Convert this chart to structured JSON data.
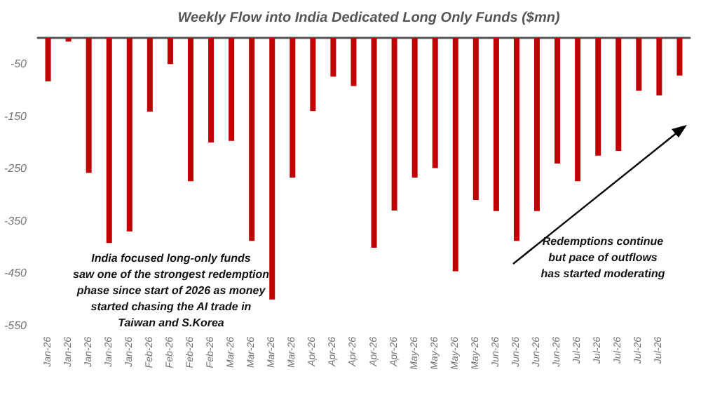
{
  "chart_data": {
    "type": "bar",
    "title": "Weekly Flow into India Dedicated Long Only Funds ($mn)",
    "categories": [
      "Jan-26",
      "Jan-26",
      "Jan-26",
      "Jan-26",
      "Jan-26",
      "Feb-26",
      "Feb-26",
      "Feb-26",
      "Feb-26",
      "Mar-26",
      "Mar-26",
      "Mar-26",
      "Mar-26",
      "Apr-26",
      "Apr-26",
      "Apr-26",
      "Apr-26",
      "Apr-26",
      "May-26",
      "May-26",
      "May-26",
      "May-26",
      "Jun-26",
      "Jun-26",
      "Jun-26",
      "Jun-26",
      "Jul-26",
      "Jul-26",
      "Jul-26",
      "Jul-26",
      "Jul-26",
      null
    ],
    "values": [
      -83,
      -7,
      -258,
      -392,
      -370,
      -141,
      -50,
      -274,
      -200,
      -197,
      -388,
      -500,
      -267,
      -140,
      -74,
      -92,
      -401,
      -330,
      -267,
      -249,
      -446,
      -310,
      -331,
      -388,
      -331,
      -240,
      -274,
      -225,
      -216,
      -101,
      -110,
      -72
    ],
    "color": "#c00000",
    "ylim": [
      -550,
      0
    ],
    "yticks": [
      -50,
      -150,
      -250,
      -350,
      -450,
      -550
    ],
    "grid": false,
    "annotations": [
      "India focused long-only funds\nsaw one of the strongest redemption\nphase since start of 2026 as money\nstarted chasing the AI trade in\nTaiwan and S.Korea",
      "Redemptions continue\nbut pace of outflows\nhas started moderating"
    ]
  }
}
